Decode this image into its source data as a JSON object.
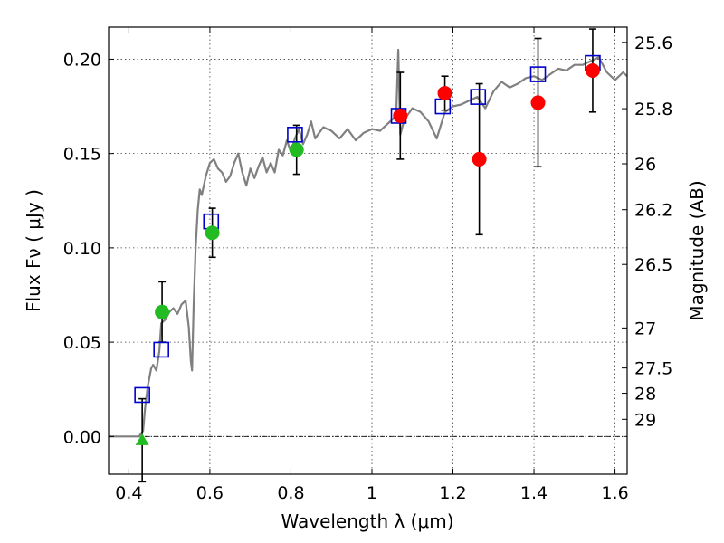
{
  "chart_data": {
    "type": "scatter",
    "xlabel": "Wavelength  λ (μm)",
    "ylabel": "Flux  Fν  ( μJy )",
    "ylabel_right": "Magnitude (AB)",
    "xlim": [
      0.35,
      1.63
    ],
    "ylim": [
      -0.02,
      0.217
    ],
    "xticks": [
      {
        "value": 0.4,
        "label": "0.4"
      },
      {
        "value": 0.6,
        "label": "0.6"
      },
      {
        "value": 0.8,
        "label": "0.8"
      },
      {
        "value": 1.0,
        "label": "1"
      },
      {
        "value": 1.2,
        "label": "1.2"
      },
      {
        "value": 1.4,
        "label": "1.4"
      },
      {
        "value": 1.6,
        "label": "1.6"
      }
    ],
    "yticks": [
      {
        "value": 0.0,
        "label": "0.00"
      },
      {
        "value": 0.05,
        "label": "0.05"
      },
      {
        "value": 0.1,
        "label": "0.10"
      },
      {
        "value": 0.15,
        "label": "0.15"
      },
      {
        "value": 0.2,
        "label": "0.20"
      }
    ],
    "right_ticks": [
      {
        "value": 25.6,
        "label": "25.6"
      },
      {
        "value": 25.8,
        "label": "25.8"
      },
      {
        "value": 26,
        "label": "26"
      },
      {
        "value": 26.2,
        "label": "26.2"
      },
      {
        "value": 26.5,
        "label": "26.5"
      },
      {
        "value": 27,
        "label": "27"
      },
      {
        "value": 27.5,
        "label": "27.5"
      },
      {
        "value": 28,
        "label": "28"
      },
      {
        "value": 29,
        "label": "29"
      }
    ],
    "grid": true,
    "colors": {
      "model": "#808080",
      "model_flux": "#0000cc",
      "observed_red": "#ff0000",
      "observed_green": "#22bb22",
      "errorbar": "#000000"
    },
    "model_spectrum": {
      "x": [
        0.35,
        0.41,
        0.425,
        0.435,
        0.44,
        0.447,
        0.455,
        0.46,
        0.468,
        0.475,
        0.48,
        0.49,
        0.5,
        0.51,
        0.52,
        0.53,
        0.54,
        0.548,
        0.553,
        0.556,
        0.56,
        0.565,
        0.57,
        0.575,
        0.58,
        0.59,
        0.6,
        0.61,
        0.62,
        0.63,
        0.64,
        0.65,
        0.66,
        0.67,
        0.68,
        0.69,
        0.7,
        0.71,
        0.72,
        0.73,
        0.74,
        0.75,
        0.76,
        0.77,
        0.78,
        0.79,
        0.8,
        0.81,
        0.82,
        0.83,
        0.84,
        0.85,
        0.86,
        0.87,
        0.88,
        0.9,
        0.92,
        0.94,
        0.96,
        0.98,
        1.0,
        1.02,
        1.04,
        1.05,
        1.06,
        1.065,
        1.07,
        1.08,
        1.1,
        1.12,
        1.14,
        1.16,
        1.18,
        1.2,
        1.22,
        1.24,
        1.26,
        1.28,
        1.3,
        1.32,
        1.34,
        1.36,
        1.38,
        1.4,
        1.42,
        1.44,
        1.46,
        1.48,
        1.5,
        1.52,
        1.54,
        1.56,
        1.58,
        1.6,
        1.62,
        1.63
      ],
      "y": [
        0.0,
        0.0,
        0.0,
        0.003,
        0.015,
        0.027,
        0.036,
        0.038,
        0.035,
        0.045,
        0.06,
        0.062,
        0.066,
        0.068,
        0.065,
        0.07,
        0.072,
        0.058,
        0.04,
        0.035,
        0.07,
        0.1,
        0.12,
        0.131,
        0.128,
        0.138,
        0.145,
        0.147,
        0.142,
        0.14,
        0.135,
        0.138,
        0.145,
        0.15,
        0.14,
        0.133,
        0.142,
        0.137,
        0.143,
        0.148,
        0.14,
        0.145,
        0.14,
        0.152,
        0.149,
        0.157,
        0.151,
        0.158,
        0.163,
        0.155,
        0.16,
        0.167,
        0.158,
        0.161,
        0.164,
        0.162,
        0.158,
        0.163,
        0.157,
        0.161,
        0.163,
        0.162,
        0.166,
        0.168,
        0.17,
        0.205,
        0.16,
        0.168,
        0.174,
        0.172,
        0.167,
        0.158,
        0.172,
        0.175,
        0.176,
        0.178,
        0.18,
        0.174,
        0.183,
        0.188,
        0.185,
        0.187,
        0.19,
        0.191,
        0.189,
        0.192,
        0.195,
        0.194,
        0.197,
        0.197,
        0.199,
        0.201,
        0.193,
        0.189,
        0.193,
        0.191
      ]
    },
    "model_flux_points": {
      "x": [
        0.433,
        0.48,
        0.603,
        0.81,
        1.066,
        1.175,
        1.262,
        1.41,
        1.545
      ],
      "y": [
        0.022,
        0.046,
        0.114,
        0.16,
        0.17,
        0.175,
        0.18,
        0.192,
        0.198
      ]
    },
    "observed_points": [
      {
        "x": 0.433,
        "y": -0.002,
        "err": 0.022,
        "color": "green",
        "marker": "triangle"
      },
      {
        "x": 0.482,
        "y": 0.066,
        "err": 0.016,
        "color": "green",
        "marker": "circle"
      },
      {
        "x": 0.606,
        "y": 0.108,
        "err": 0.013,
        "color": "green",
        "marker": "circle"
      },
      {
        "x": 0.814,
        "y": 0.152,
        "err": 0.013,
        "color": "green",
        "marker": "circle"
      },
      {
        "x": 1.07,
        "y": 0.17,
        "err": 0.023,
        "color": "red",
        "marker": "circle"
      },
      {
        "x": 1.18,
        "y": 0.182,
        "err": 0.009,
        "color": "red",
        "marker": "circle"
      },
      {
        "x": 1.265,
        "y": 0.147,
        "err": 0.04,
        "color": "red",
        "marker": "circle"
      },
      {
        "x": 1.41,
        "y": 0.177,
        "err": 0.034,
        "color": "red",
        "marker": "circle"
      },
      {
        "x": 1.545,
        "y": 0.194,
        "err": 0.022,
        "color": "red",
        "marker": "circle"
      }
    ]
  }
}
